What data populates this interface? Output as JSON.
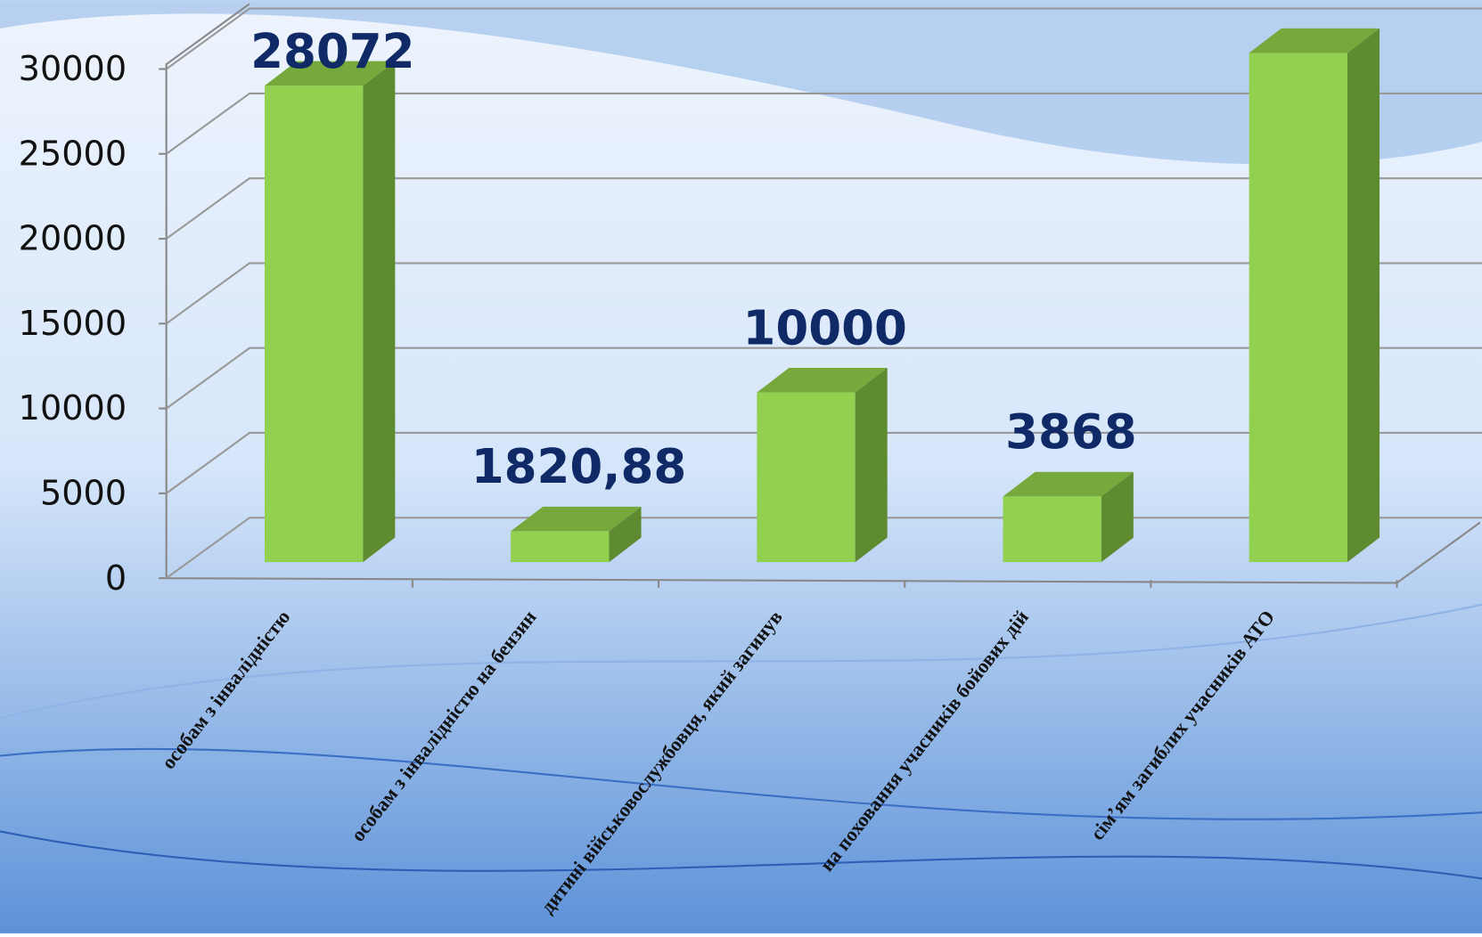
{
  "chart_data": {
    "type": "bar3d",
    "categories": [
      "особам з інвалідністю",
      "особам з інвалідністю на бензин",
      "дитині військовослужбовця, який загинув",
      "на поховання учасників бойових дій",
      "сім’ям загиблих учасників АТО"
    ],
    "values": [
      28072,
      1820.88,
      10000,
      3868,
      30000
    ],
    "value_labels": [
      "28072",
      "1820,88",
      "10000",
      "3868",
      null
    ],
    "color": "#92d050",
    "ylim": [
      0,
      30000
    ],
    "yticks": [
      0,
      5000,
      10000,
      15000,
      20000,
      25000,
      30000
    ],
    "grid": true
  }
}
